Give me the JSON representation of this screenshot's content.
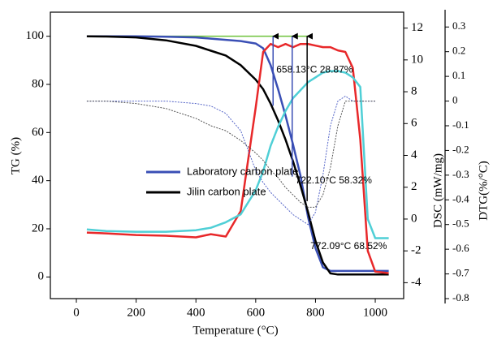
{
  "chart_data": {
    "type": "line",
    "x_label": "Temperature (°C)",
    "y_label": "TG (%)",
    "y2_label": "DSC (mW/mg)",
    "y3_label": "DTG(%/°C)",
    "xlim": [
      -87,
      1095
    ],
    "xticks": [
      0,
      200,
      400,
      600,
      800,
      1000
    ],
    "ylim": [
      -9,
      110
    ],
    "yticks": [
      0,
      20,
      40,
      60,
      80,
      100
    ],
    "y2lim": [
      -5,
      13
    ],
    "y2ticks": [
      -4,
      -2,
      0,
      2,
      4,
      6,
      8,
      10,
      12
    ],
    "y3lim": [
      -0.8,
      0.36
    ],
    "y3ticks": [
      -0.8,
      -0.7,
      -0.6,
      -0.5,
      -0.4,
      -0.3,
      -0.2,
      -0.1,
      0.0,
      0.1,
      0.2,
      0.3
    ],
    "legend": "center-left",
    "x": [
      35,
      100,
      200,
      300,
      400,
      450,
      500,
      550,
      600,
      625,
      650,
      675,
      700,
      725,
      750,
      775,
      800,
      825,
      850,
      875,
      900,
      925,
      950,
      975,
      1000,
      1045
    ],
    "series": [
      {
        "name": "Laboratory carbon plate",
        "color": "#3a4fb5",
        "axis": "y",
        "values": [
          100,
          100,
          100,
          99.8,
          99.5,
          99,
          98.5,
          98,
          97,
          95,
          88,
          78,
          67,
          55,
          42,
          25,
          12,
          4,
          2.5,
          2.5,
          2.5,
          2.5,
          2.5,
          2.5,
          2.5,
          2.5
        ]
      },
      {
        "name": "Jilin carbon plate",
        "color": "#000000",
        "axis": "y",
        "values": [
          100,
          99.9,
          99.5,
          98.3,
          96,
          94,
          92,
          88,
          82,
          78,
          72,
          65,
          57,
          48,
          38,
          27,
          15,
          6,
          1.5,
          1,
          1,
          1,
          1,
          1,
          1,
          1
        ]
      },
      {
        "color": "#e8282a",
        "axis": "y2",
        "values": [
          -0.85,
          -0.9,
          -1,
          -1.05,
          -1.15,
          -0.95,
          -1.1,
          0.5,
          7,
          10.5,
          11,
          10.8,
          11,
          10.8,
          11,
          11,
          10.9,
          10.8,
          10.8,
          10.6,
          10.5,
          9.5,
          5,
          -2,
          -3.3,
          -3.4
        ]
      },
      {
        "color": "#4fcfd6",
        "axis": "y2",
        "values": [
          -0.65,
          -0.75,
          -0.8,
          -0.8,
          -0.7,
          -0.55,
          -0.2,
          0.3,
          1.8,
          3,
          4.6,
          5.8,
          6.8,
          7.6,
          8.1,
          8.6,
          8.9,
          9.2,
          9.3,
          9.3,
          9.2,
          8.9,
          8.3,
          0,
          -1.2,
          -1.2
        ]
      },
      {
        "color": "#5565c8",
        "axis": "y3",
        "dash": true,
        "values": [
          0.0,
          0.0,
          0.0,
          0.0,
          -0.01,
          -0.02,
          -0.05,
          -0.12,
          -0.28,
          -0.33,
          -0.37,
          -0.4,
          -0.43,
          -0.46,
          -0.48,
          -0.5,
          -0.45,
          -0.3,
          -0.1,
          0.0,
          0.02,
          0.0,
          0.0,
          0.0,
          0.0,
          null
        ]
      },
      {
        "color": "#555555",
        "axis": "y3",
        "dash": true,
        "values": [
          0,
          0,
          -0.01,
          -0.03,
          -0.07,
          -0.1,
          -0.12,
          -0.16,
          -0.21,
          -0.24,
          -0.28,
          -0.31,
          -0.35,
          -0.38,
          -0.41,
          -0.43,
          -0.43,
          -0.38,
          -0.27,
          -0.1,
          0.0,
          0.0,
          0.0,
          0.0,
          0.0,
          null
        ]
      }
    ],
    "reference_line": {
      "y": 100,
      "xlim": [
        85,
        790
      ],
      "color": "#6ec23a"
    },
    "annotations": [
      {
        "text": "658.13°C 28.87%",
        "x": 658.13,
        "loss": 28.87,
        "color": "#3a4fb5"
      },
      {
        "text": "722.10°C 58.32%",
        "x": 722.1,
        "loss": 58.32,
        "color": "#3a4fb5"
      },
      {
        "text": "772.09°C 68.52%",
        "x": 772.09,
        "loss": 68.52,
        "color": "#000000"
      }
    ]
  }
}
